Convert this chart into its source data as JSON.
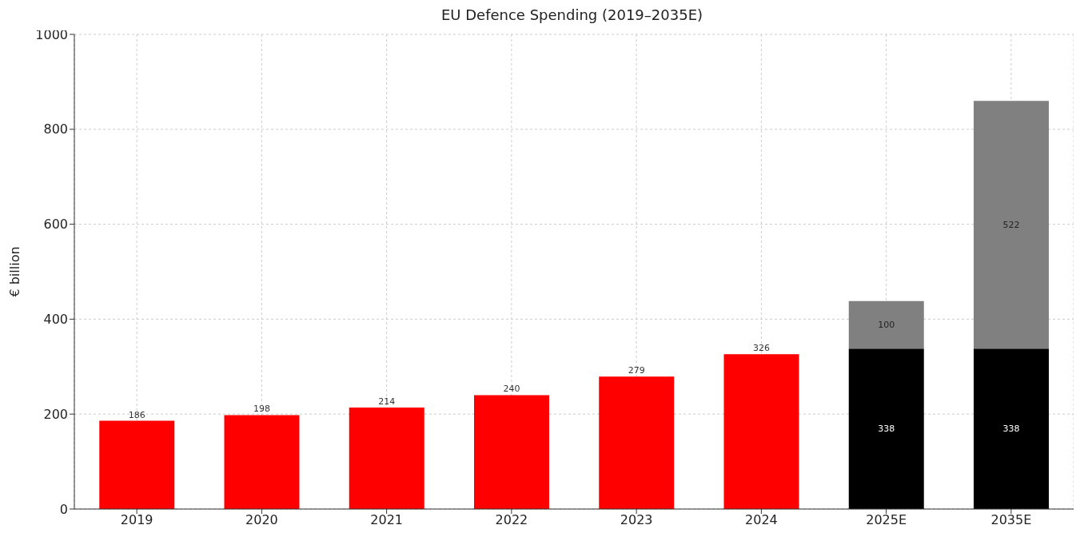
{
  "chart_data": {
    "type": "bar",
    "title": "EU Defence Spending (2019–2035E)",
    "ylabel": "€ billion",
    "categories": [
      "2019",
      "2020",
      "2021",
      "2022",
      "2023",
      "2024",
      "2025E",
      "2035E"
    ],
    "stacked": true,
    "series": [
      {
        "color": "#ff0000",
        "colors": [
          "#ff0000",
          "#ff0000",
          "#ff0000",
          "#ff0000",
          "#ff0000",
          "#ff0000",
          "#000000",
          "#000000"
        ],
        "values": [
          186,
          198,
          214,
          240,
          279,
          326,
          338,
          338
        ]
      },
      {
        "color": "#808080",
        "values": [
          null,
          null,
          null,
          null,
          null,
          null,
          100,
          522
        ]
      }
    ],
    "ylim": [
      0,
      1000
    ],
    "yticks": [
      0,
      200,
      400,
      600,
      800,
      1000
    ],
    "grid": true,
    "legend": false,
    "data_labels": true
  }
}
